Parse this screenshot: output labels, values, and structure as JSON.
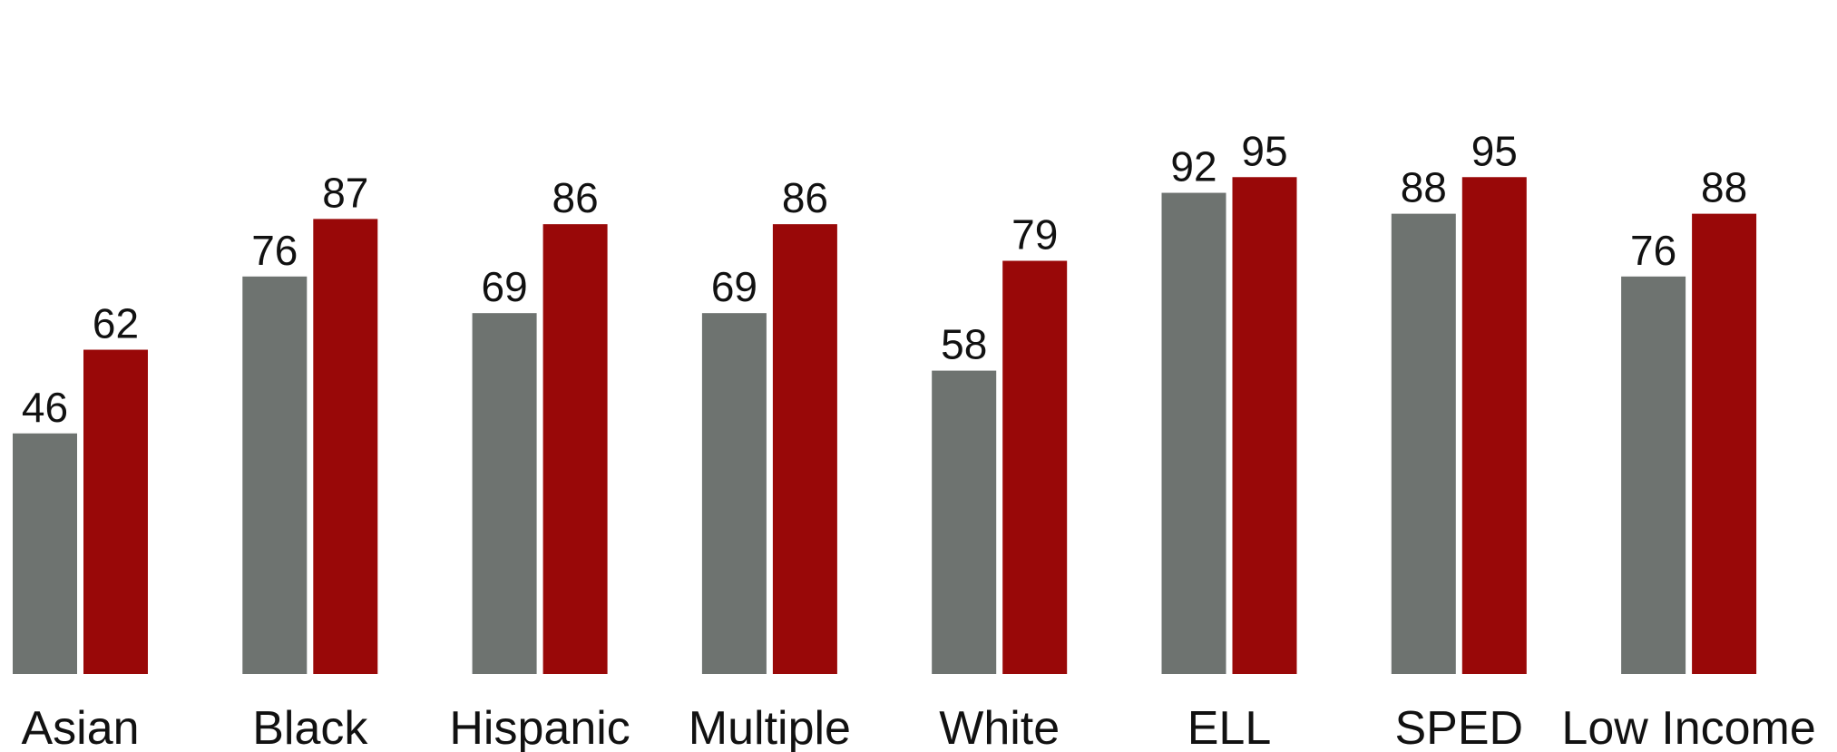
{
  "chart_data": {
    "type": "bar",
    "categories": [
      "Asian",
      "Black",
      "Hispanic",
      "Multiple",
      "White",
      "ELL",
      "SPED",
      "Low Income"
    ],
    "series": [
      {
        "values": [
          46,
          76,
          69,
          69,
          58,
          92,
          88,
          76
        ],
        "color": "#6e7370"
      },
      {
        "values": [
          62,
          87,
          86,
          86,
          79,
          95,
          95,
          88
        ],
        "color": "#990808"
      }
    ],
    "title": "",
    "xlabel": "",
    "ylabel": "",
    "ylim": [
      0,
      100
    ],
    "grid": false,
    "legend": "none",
    "data_labels": true
  }
}
